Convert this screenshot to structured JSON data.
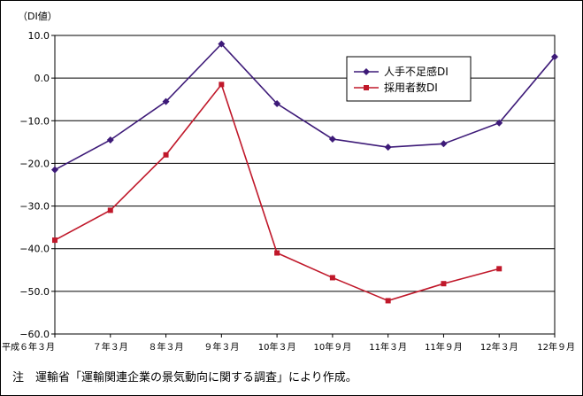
{
  "chart_data": {
    "type": "line",
    "ylabel": "（DI値）",
    "ylim": [
      -60,
      10
    ],
    "yticks": [
      10,
      0,
      -10,
      -20,
      -30,
      -40,
      -50,
      -60
    ],
    "ytick_labels": [
      "10.0",
      "0.0",
      "−10.0",
      "−20.0",
      "−30.0",
      "−40.0",
      "−50.0",
      "−60.0"
    ],
    "categories": [
      "平成６年３月",
      "７年３月",
      "８年３月",
      "９年３月",
      "10年３月",
      "10年９月",
      "11年３月",
      "11年９月",
      "12年３月",
      "12年９月"
    ],
    "grid": true,
    "legend_position": "top-right",
    "series": [
      {
        "name": "人手不足感DI",
        "color": "#3d1a78",
        "marker": "diamond",
        "values": [
          -21.5,
          -14.5,
          -5.5,
          8.0,
          -6.0,
          -14.3,
          -16.2,
          -15.4,
          -10.5,
          5.0
        ]
      },
      {
        "name": "採用者数DI",
        "color": "#c0182a",
        "marker": "square",
        "values": [
          -38.0,
          -31.0,
          -18.0,
          -1.5,
          -41.0,
          -46.8,
          -52.2,
          -48.2,
          -44.7,
          null
        ]
      }
    ]
  },
  "note": "注　運輸省「運輸関連企業の景気動向に関する調査」により作成。"
}
